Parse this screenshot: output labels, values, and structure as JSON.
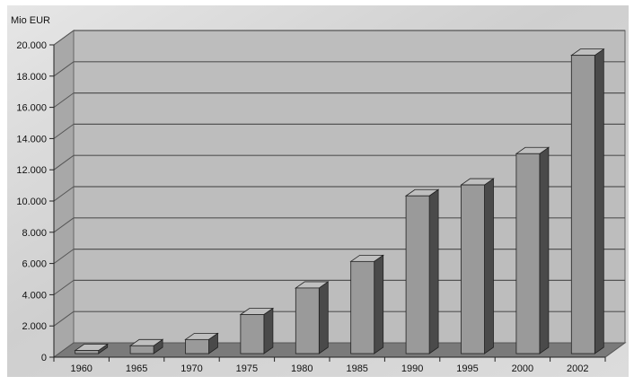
{
  "chart_data": {
    "type": "bar",
    "ylabel": "Mio EUR",
    "xlabel": "",
    "categories": [
      "1960",
      "1965",
      "1970",
      "1975",
      "1980",
      "1985",
      "1990",
      "1995",
      "2000",
      "2002"
    ],
    "values": [
      200,
      500,
      900,
      2500,
      4200,
      5900,
      10100,
      10800,
      12800,
      19100
    ],
    "ylim": [
      0,
      20000
    ],
    "yticks": [
      "0",
      "2.000",
      "4.000",
      "6.000",
      "8.000",
      "10.000",
      "12.000",
      "14.000",
      "16.000",
      "18.000",
      "20.000"
    ],
    "grid": true,
    "legend": "none",
    "colors": {
      "plot_bg": "#bdbdbd",
      "floor": "#7a7a7a",
      "bar_front": "#9a9a9a",
      "bar_top": "#bfbfbf",
      "bar_side": "#4a4a4a",
      "grid": "#555555",
      "text": "#111111",
      "outer_bg": "#d4d4d4"
    }
  }
}
